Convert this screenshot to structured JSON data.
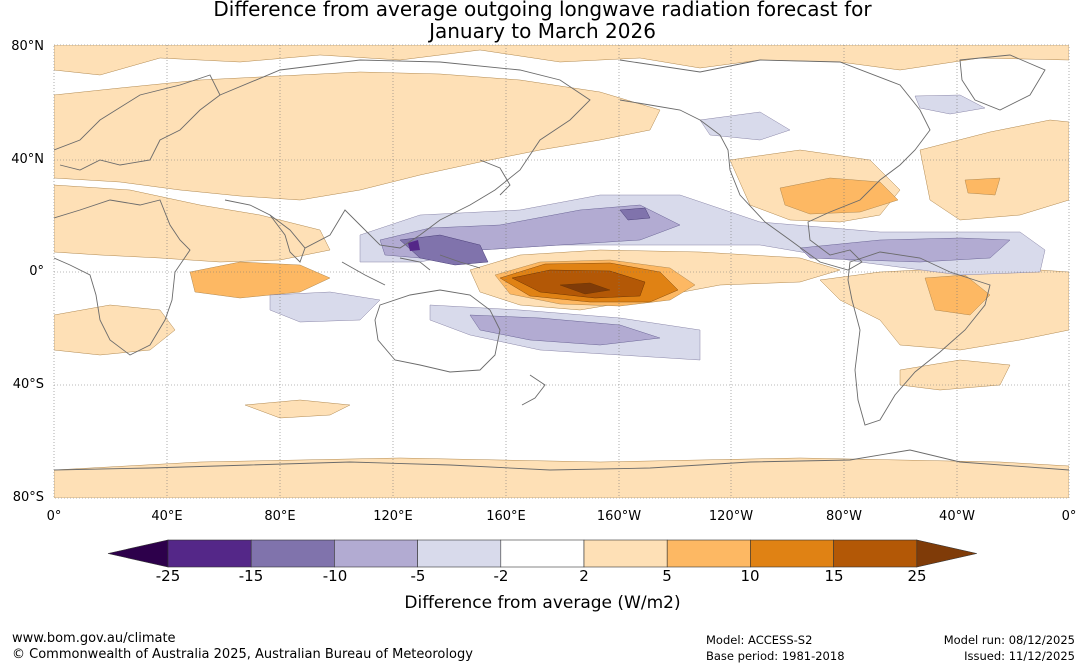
{
  "title_line1": "Difference from average outgoing longwave radiation forecast for",
  "title_line2": "January to March 2026",
  "lat_labels": [
    "80°N",
    "40°N",
    "0°",
    "40°S",
    "80°S"
  ],
  "lon_labels": [
    "0°",
    "40°E",
    "80°E",
    "120°E",
    "160°E",
    "160°W",
    "120°W",
    "80°W",
    "40°W",
    "0°"
  ],
  "colorbar": {
    "title": "Difference from average (W/m2)",
    "ticks": [
      "-25",
      "-15",
      "-10",
      "-5",
      "-2",
      "2",
      "5",
      "10",
      "15",
      "25"
    ],
    "colors": [
      "#2d004b",
      "#542788",
      "#8073ac",
      "#b2abd2",
      "#d8daeb",
      "#ffffff",
      "#fee0b6",
      "#fdb863",
      "#e08214",
      "#b35806",
      "#7f3b08"
    ]
  },
  "footer": {
    "website": "www.bom.gov.au/climate",
    "copyright": "© Commonwealth of Australia 2025, Australian Bureau of Meteorology",
    "model": "Model: ACCESS-S2",
    "base_period": "Base period: 1981-2018",
    "model_run": "Model run: 08/12/2025",
    "issued": "Issued: 11/12/2025"
  }
}
